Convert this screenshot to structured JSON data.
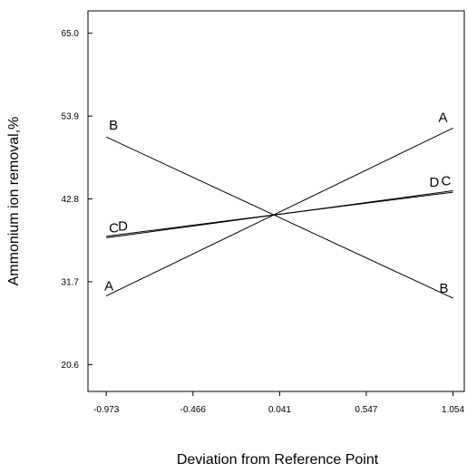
{
  "chart_data": {
    "type": "line",
    "title": "",
    "xlabel": "Deviation from Reference Point",
    "ylabel": "Ammonium ion removal,%",
    "xlim": [
      -1.08,
      1.12
    ],
    "ylim": [
      17.0,
      68.0
    ],
    "x_ticks": [
      "-0.973",
      "-0.466",
      "0.041",
      "0.547",
      "1.054"
    ],
    "y_ticks": [
      "65.0",
      "53.9",
      "42.8",
      "31.7",
      "20.6"
    ],
    "x_tick_values": [
      -0.973,
      -0.466,
      0.041,
      0.547,
      1.054
    ],
    "y_tick_values": [
      65.0,
      53.9,
      42.8,
      31.7,
      20.6
    ],
    "grid": false,
    "legend": "none",
    "series": [
      {
        "name": "A",
        "x": [
          -0.973,
          1.054
        ],
        "y": [
          29.8,
          52.3
        ],
        "start_label": "A",
        "end_label": "A"
      },
      {
        "name": "B",
        "x": [
          -0.973,
          1.054
        ],
        "y": [
          51.1,
          29.5
        ],
        "start_label": "B",
        "end_label": "B"
      },
      {
        "name": "C",
        "x": [
          -0.973,
          1.054
        ],
        "y": [
          37.6,
          43.9
        ],
        "start_label": "C",
        "end_label": "C"
      },
      {
        "name": "D",
        "x": [
          -0.973,
          1.054
        ],
        "y": [
          37.8,
          43.7
        ],
        "start_label": "D",
        "end_label": "D"
      }
    ]
  }
}
